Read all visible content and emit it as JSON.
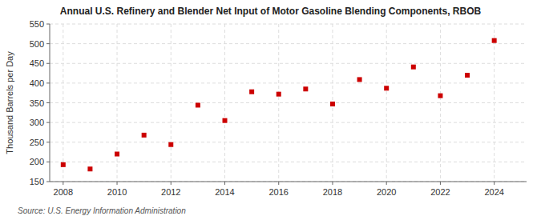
{
  "chart_data": {
    "type": "scatter",
    "title": "Annual U.S. Refinery and Blender Net Input of Motor Gasoline Blending Components, RBOB",
    "ylabel": "Thousand Barrels per Day",
    "source": "Source: U.S. Energy Information Administration",
    "x": [
      2008,
      2009,
      2010,
      2011,
      2012,
      2013,
      2014,
      2015,
      2016,
      2017,
      2018,
      2019,
      2020,
      2021,
      2022,
      2023,
      2024
    ],
    "values": [
      193,
      182,
      220,
      268,
      244,
      344,
      305,
      378,
      372,
      385,
      347,
      409,
      387,
      441,
      368,
      420,
      508
    ],
    "color": "#cc0000",
    "marker": "square",
    "xlim": [
      2007.5,
      2025.2
    ],
    "xticks": [
      2008,
      2010,
      2012,
      2014,
      2016,
      2018,
      2020,
      2022,
      2024
    ],
    "ylim": [
      150,
      550
    ],
    "yticks": [
      150,
      200,
      250,
      300,
      350,
      400,
      450,
      500,
      550
    ],
    "grid": true
  }
}
